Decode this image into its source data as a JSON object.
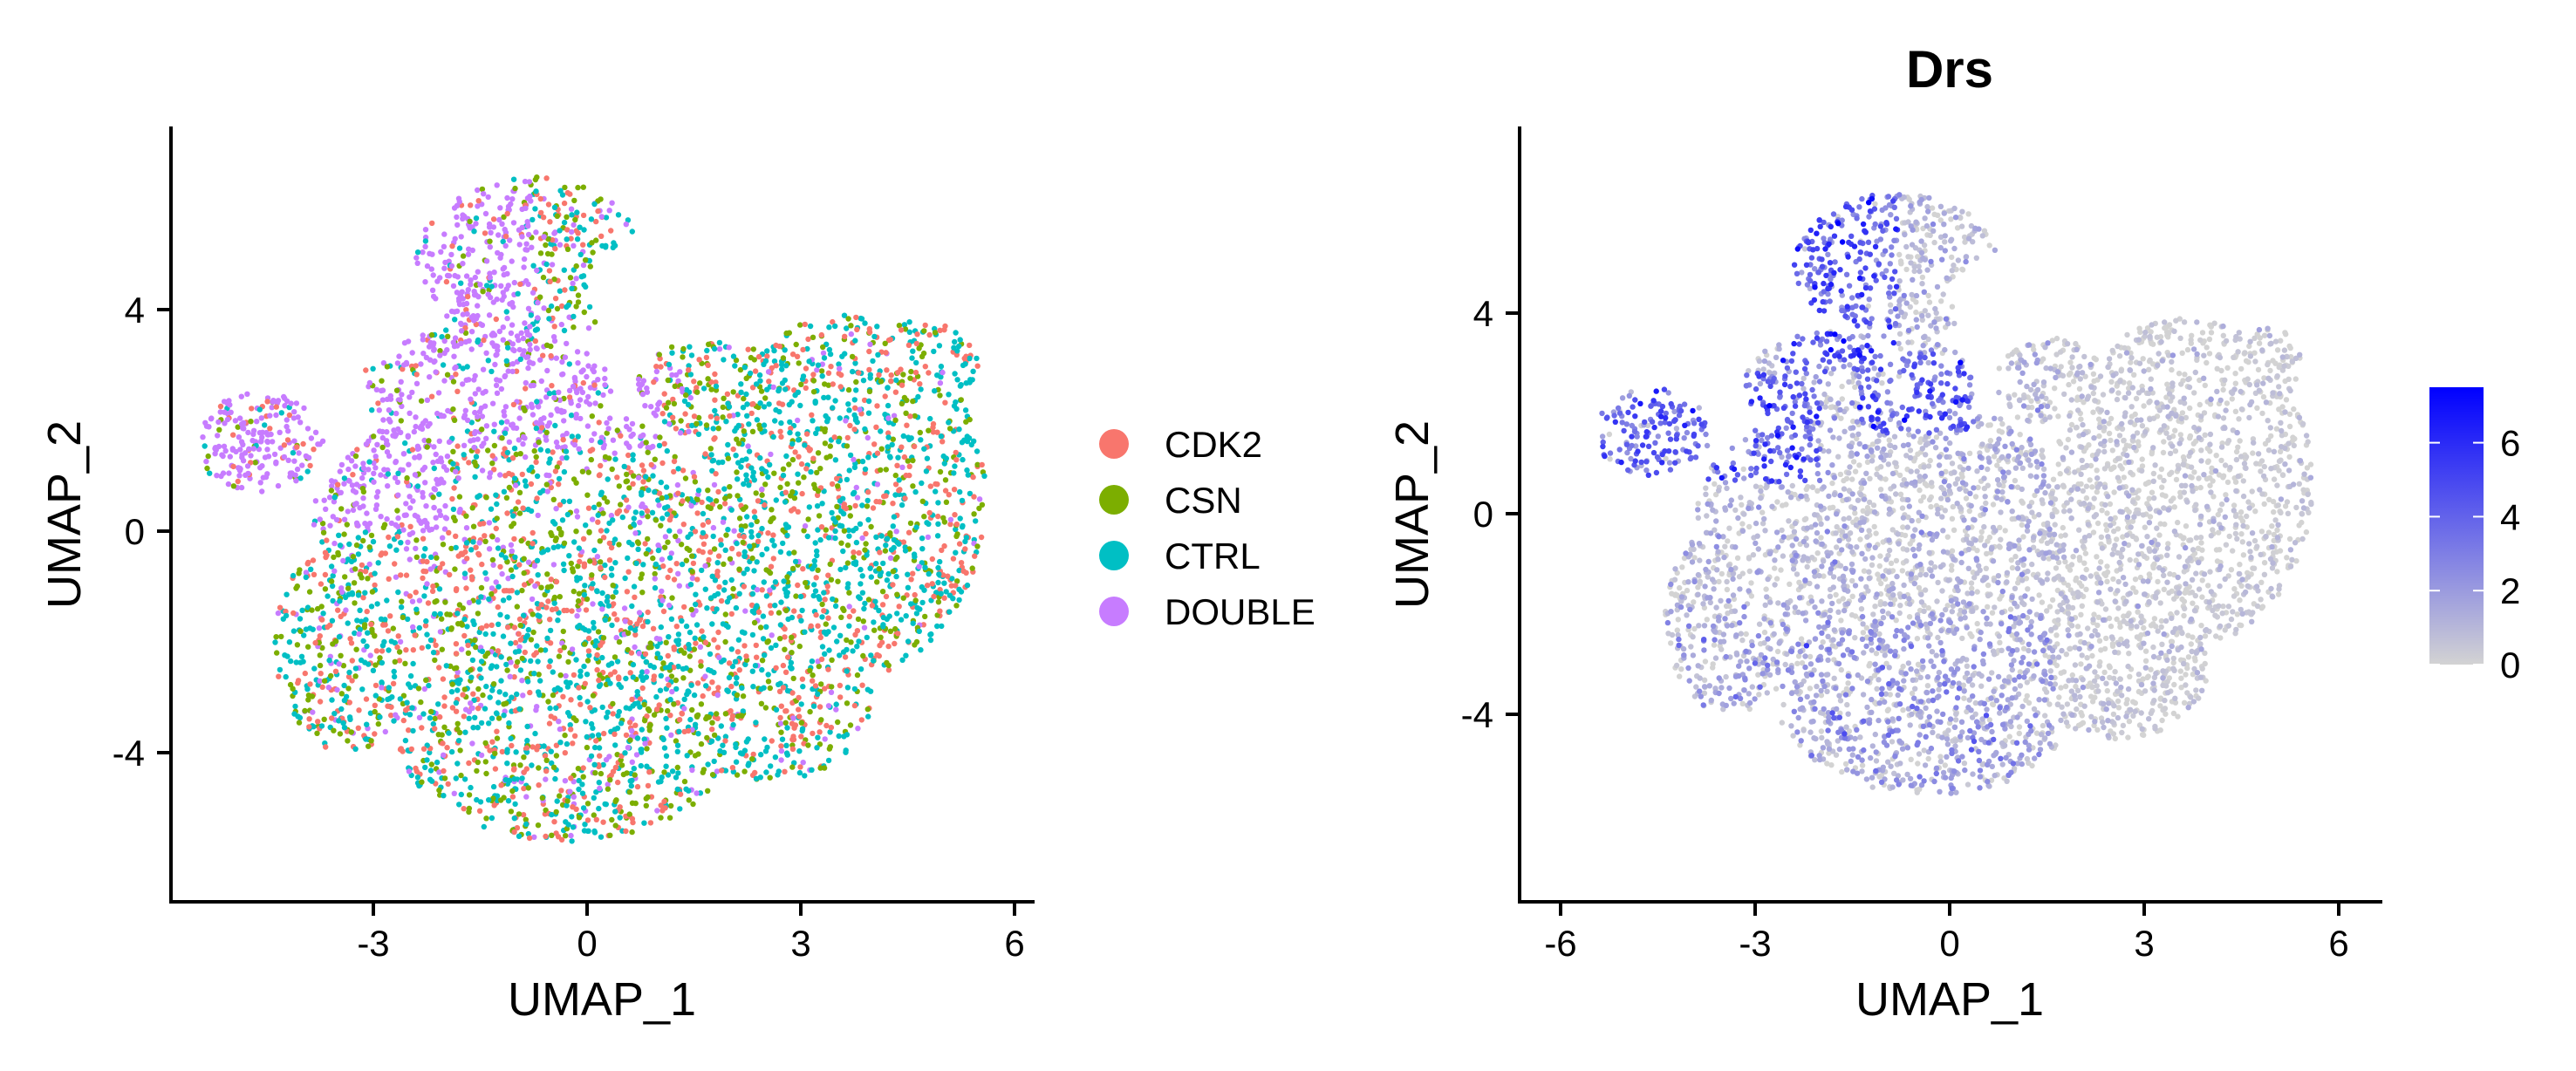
{
  "chart_data": [
    {
      "type": "scatter",
      "title": "",
      "xlabel": "UMAP_1",
      "ylabel": "UMAP_2",
      "xlim": [
        -6.0,
        6.2
      ],
      "ylim": [
        -6.8,
        7.4
      ],
      "xticks": [
        -3,
        0,
        3,
        6
      ],
      "xtick_labels": [
        "-3",
        "0",
        "3",
        "6"
      ],
      "yticks": [
        -4,
        0,
        4
      ],
      "ytick_labels": [
        "-4",
        "0",
        "4"
      ],
      "grid": false,
      "legend_position": "right",
      "series": [
        {
          "name": "CDK2",
          "color": "#F8766D"
        },
        {
          "name": "CSN",
          "color": "#7CAE00"
        },
        {
          "name": "CTRL",
          "color": "#00BFC4"
        },
        {
          "name": "DOUBLE",
          "color": "#C77CFF"
        }
      ],
      "point_region": {
        "x_range": [
          -5.4,
          5.9
        ],
        "y_range": [
          -6.0,
          6.6
        ],
        "regions": [
          {
            "name": "top-lobe",
            "x": [
              -2.6,
              1.0
            ],
            "y": [
              2.8,
              6.5
            ],
            "dominant": "DOUBLE"
          },
          {
            "name": "left-arm",
            "x": [
              -5.4,
              -2.0
            ],
            "y": [
              0.0,
              2.6
            ],
            "dominant": "DOUBLE"
          },
          {
            "name": "center",
            "x": [
              -1.6,
              1.0
            ],
            "y": [
              1.4,
              3.4
            ],
            "dominant": "DOUBLE"
          },
          {
            "name": "right-lobe",
            "x": [
              1.5,
              5.9
            ],
            "y": [
              -3.0,
              4.2
            ],
            "dominant": "CTRL"
          },
          {
            "name": "bottom",
            "x": [
              -3.5,
              3.0
            ],
            "y": [
              -6.0,
              -1.0
            ],
            "dominant": "CTRL"
          }
        ]
      }
    },
    {
      "type": "scatter",
      "title": "Drs",
      "xlabel": "UMAP_1",
      "ylabel": "UMAP_2",
      "xlim": [
        -6.0,
        6.2
      ],
      "ylim": [
        -7.3,
        7.4
      ],
      "xticks": [
        -6,
        -3,
        0,
        3,
        6
      ],
      "xtick_labels": [
        "-6",
        "-3",
        "0",
        "3",
        "6"
      ],
      "yticks": [
        -4,
        0,
        4
      ],
      "ytick_labels": [
        "-4",
        "0",
        "4"
      ],
      "grid": false,
      "color_scale": {
        "low_color": "#D3D3D3",
        "high_color": "#0000FF",
        "min": 0,
        "max": 7.5,
        "ticks": [
          0,
          2,
          4,
          6
        ],
        "tick_labels": [
          "0",
          "2",
          "4",
          "6"
        ]
      },
      "legend_position": "right"
    }
  ]
}
